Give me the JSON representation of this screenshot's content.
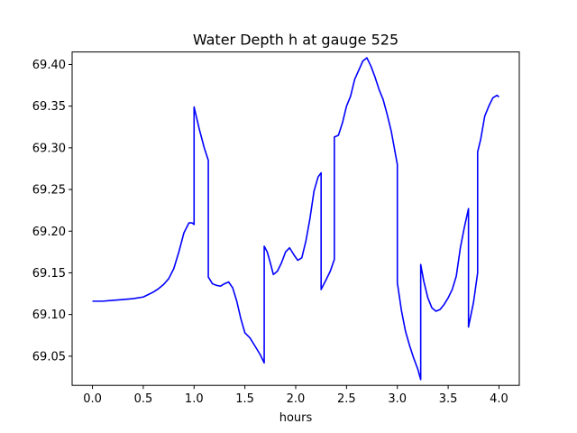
{
  "chart_data": {
    "type": "line",
    "title": "Water Depth h at gauge 525",
    "xlabel": "hours",
    "ylabel": "",
    "xlim": [
      -0.2,
      4.2
    ],
    "ylim": [
      69.015,
      69.415
    ],
    "xticks": [
      0.0,
      0.5,
      1.0,
      1.5,
      2.0,
      2.5,
      3.0,
      3.5,
      4.0
    ],
    "xtick_labels": [
      "0.0",
      "0.5",
      "1.0",
      "1.5",
      "2.0",
      "2.5",
      "3.0",
      "3.5",
      "4.0"
    ],
    "yticks": [
      69.05,
      69.1,
      69.15,
      69.2,
      69.25,
      69.3,
      69.35,
      69.4
    ],
    "ytick_labels": [
      "69.05",
      "69.10",
      "69.15",
      "69.20",
      "69.25",
      "69.30",
      "69.35",
      "69.40"
    ],
    "grid": false,
    "series": [
      {
        "color": "#0000ff",
        "x": [
          0.0,
          0.1,
          0.2,
          0.3,
          0.4,
          0.5,
          0.55,
          0.6,
          0.65,
          0.7,
          0.75,
          0.8,
          0.85,
          0.9,
          0.95,
          0.98,
          1.0,
          1.0,
          1.05,
          1.1,
          1.14,
          1.14,
          1.18,
          1.22,
          1.26,
          1.3,
          1.34,
          1.38,
          1.42,
          1.46,
          1.5,
          1.55,
          1.6,
          1.65,
          1.69,
          1.69,
          1.72,
          1.75,
          1.78,
          1.82,
          1.86,
          1.9,
          1.94,
          1.98,
          2.02,
          2.06,
          2.1,
          2.14,
          2.18,
          2.22,
          2.25,
          2.25,
          2.3,
          2.34,
          2.38,
          2.38,
          2.42,
          2.46,
          2.5,
          2.54,
          2.58,
          2.62,
          2.66,
          2.7,
          2.74,
          2.78,
          2.82,
          2.86,
          2.9,
          2.94,
          3.0,
          3.0,
          3.04,
          3.08,
          3.12,
          3.16,
          3.2,
          3.23,
          3.23,
          3.26,
          3.3,
          3.34,
          3.38,
          3.42,
          3.46,
          3.5,
          3.54,
          3.58,
          3.62,
          3.66,
          3.7,
          3.7,
          3.75,
          3.79,
          3.79,
          3.82,
          3.86,
          3.9,
          3.94,
          3.98,
          4.0
        ],
        "y": [
          69.116,
          69.116,
          69.117,
          69.118,
          69.119,
          69.121,
          69.124,
          69.127,
          69.131,
          69.136,
          69.143,
          69.155,
          69.175,
          69.198,
          69.21,
          69.21,
          69.208,
          69.349,
          69.323,
          69.3,
          69.285,
          69.145,
          69.137,
          69.135,
          69.134,
          69.137,
          69.139,
          69.132,
          69.116,
          69.095,
          69.078,
          69.072,
          69.062,
          69.052,
          69.042,
          69.182,
          69.175,
          69.162,
          69.148,
          69.152,
          69.162,
          69.175,
          69.18,
          69.172,
          69.165,
          69.168,
          69.188,
          69.215,
          69.248,
          69.265,
          69.27,
          69.13,
          69.142,
          69.152,
          69.166,
          69.313,
          69.315,
          69.33,
          69.35,
          69.362,
          69.382,
          69.393,
          69.404,
          69.408,
          69.398,
          69.385,
          69.37,
          69.358,
          69.34,
          69.32,
          69.28,
          69.138,
          69.105,
          69.08,
          69.063,
          69.048,
          69.035,
          69.022,
          69.16,
          69.14,
          69.12,
          69.108,
          69.104,
          69.106,
          69.112,
          69.12,
          69.13,
          69.146,
          69.18,
          69.205,
          69.227,
          69.085,
          69.115,
          69.15,
          69.295,
          69.31,
          69.338,
          69.35,
          69.36,
          69.363,
          69.361
        ]
      }
    ]
  }
}
